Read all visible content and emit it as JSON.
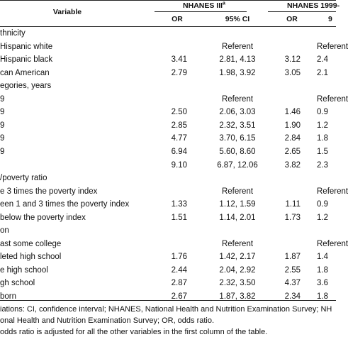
{
  "header": {
    "variable": "Variable",
    "group1": "NHANES III",
    "group1_sup": "a",
    "group2": "NHANES  1999-",
    "or": "OR",
    "ci": "95% CI",
    "or2": "OR",
    "ci2": "9"
  },
  "rows": [
    {
      "label": "thnicity",
      "or1": "",
      "ci1": "",
      "or2": "",
      "ci2": ""
    },
    {
      "label": "Hispanic white",
      "or1": "",
      "ci1": "Referent",
      "or2": "",
      "ci2": "Referent"
    },
    {
      "label": "Hispanic black",
      "or1": "3.41",
      "ci1": "2.81, 4.13",
      "or2": "3.12",
      "ci2": "2.4"
    },
    {
      "label": "can American",
      "or1": "2.79",
      "ci1": "1.98, 3.92",
      "or2": "3.05",
      "ci2": "2.1"
    },
    {
      "label": "egories, years",
      "or1": "",
      "ci1": "",
      "or2": "",
      "ci2": ""
    },
    {
      "label": "9",
      "or1": "",
      "ci1": "Referent",
      "or2": "",
      "ci2": "Referent"
    },
    {
      "label": "9",
      "or1": "2.50",
      "ci1": "2.06, 3.03",
      "or2": "1.46",
      "ci2": "0.9"
    },
    {
      "label": "9",
      "or1": "2.85",
      "ci1": "2.32, 3.51",
      "or2": "1.90",
      "ci2": "1.2"
    },
    {
      "label": "9",
      "or1": "4.77",
      "ci1": "3.70, 6.15",
      "or2": "2.84",
      "ci2": "1.8"
    },
    {
      "label": "9",
      "or1": "6.94",
      "ci1": "5.60, 8.60",
      "or2": "2.65",
      "ci2": "1.5"
    },
    {
      "label": "",
      "or1": "9.10",
      "ci1": "6.87, 12.06",
      "or2": "3.82",
      "ci2": "2.3"
    },
    {
      "label": "/poverty ratio",
      "or1": "",
      "ci1": "",
      "or2": "",
      "ci2": ""
    },
    {
      "label": "e 3 times the poverty index",
      "or1": "",
      "ci1": "Referent",
      "or2": "",
      "ci2": "Referent"
    },
    {
      "label": "een 1 and 3 times the poverty index",
      "or1": "1.33",
      "ci1": "1.12, 1.59",
      "or2": "1.11",
      "ci2": "0.9"
    },
    {
      "label": "below the poverty index",
      "or1": "1.51",
      "ci1": "1.14, 2.01",
      "or2": "1.73",
      "ci2": "1.2"
    },
    {
      "label": "on",
      "or1": "",
      "ci1": "",
      "or2": "",
      "ci2": ""
    },
    {
      "label": "ast some college",
      "or1": "",
      "ci1": "Referent",
      "or2": "",
      "ci2": "Referent"
    },
    {
      "label": "leted high school",
      "or1": "1.76",
      "ci1": "1.42, 2.17",
      "or2": "1.87",
      "ci2": "1.4"
    },
    {
      "label": "e high school",
      "or1": "2.44",
      "ci1": "2.04, 2.92",
      "or2": "2.55",
      "ci2": "1.8"
    },
    {
      "label": "gh school",
      "or1": "2.87",
      "ci1": "2.32, 3.50",
      "or2": "4.37",
      "ci2": "3.6"
    },
    {
      "label": " born",
      "or1": "2.67",
      "ci1": "1.87, 3.82",
      "or2": "2.34",
      "ci2": "1.8"
    }
  ],
  "footnotes": [
    "iations: CI, confidence interval; NHANES, National Health and Nutrition Examination Survey; NH",
    "onal Health and Nutrition Examination Survey; OR, odds ratio.",
    "odds ratio is adjusted for all the other variables in the first column of the table."
  ]
}
